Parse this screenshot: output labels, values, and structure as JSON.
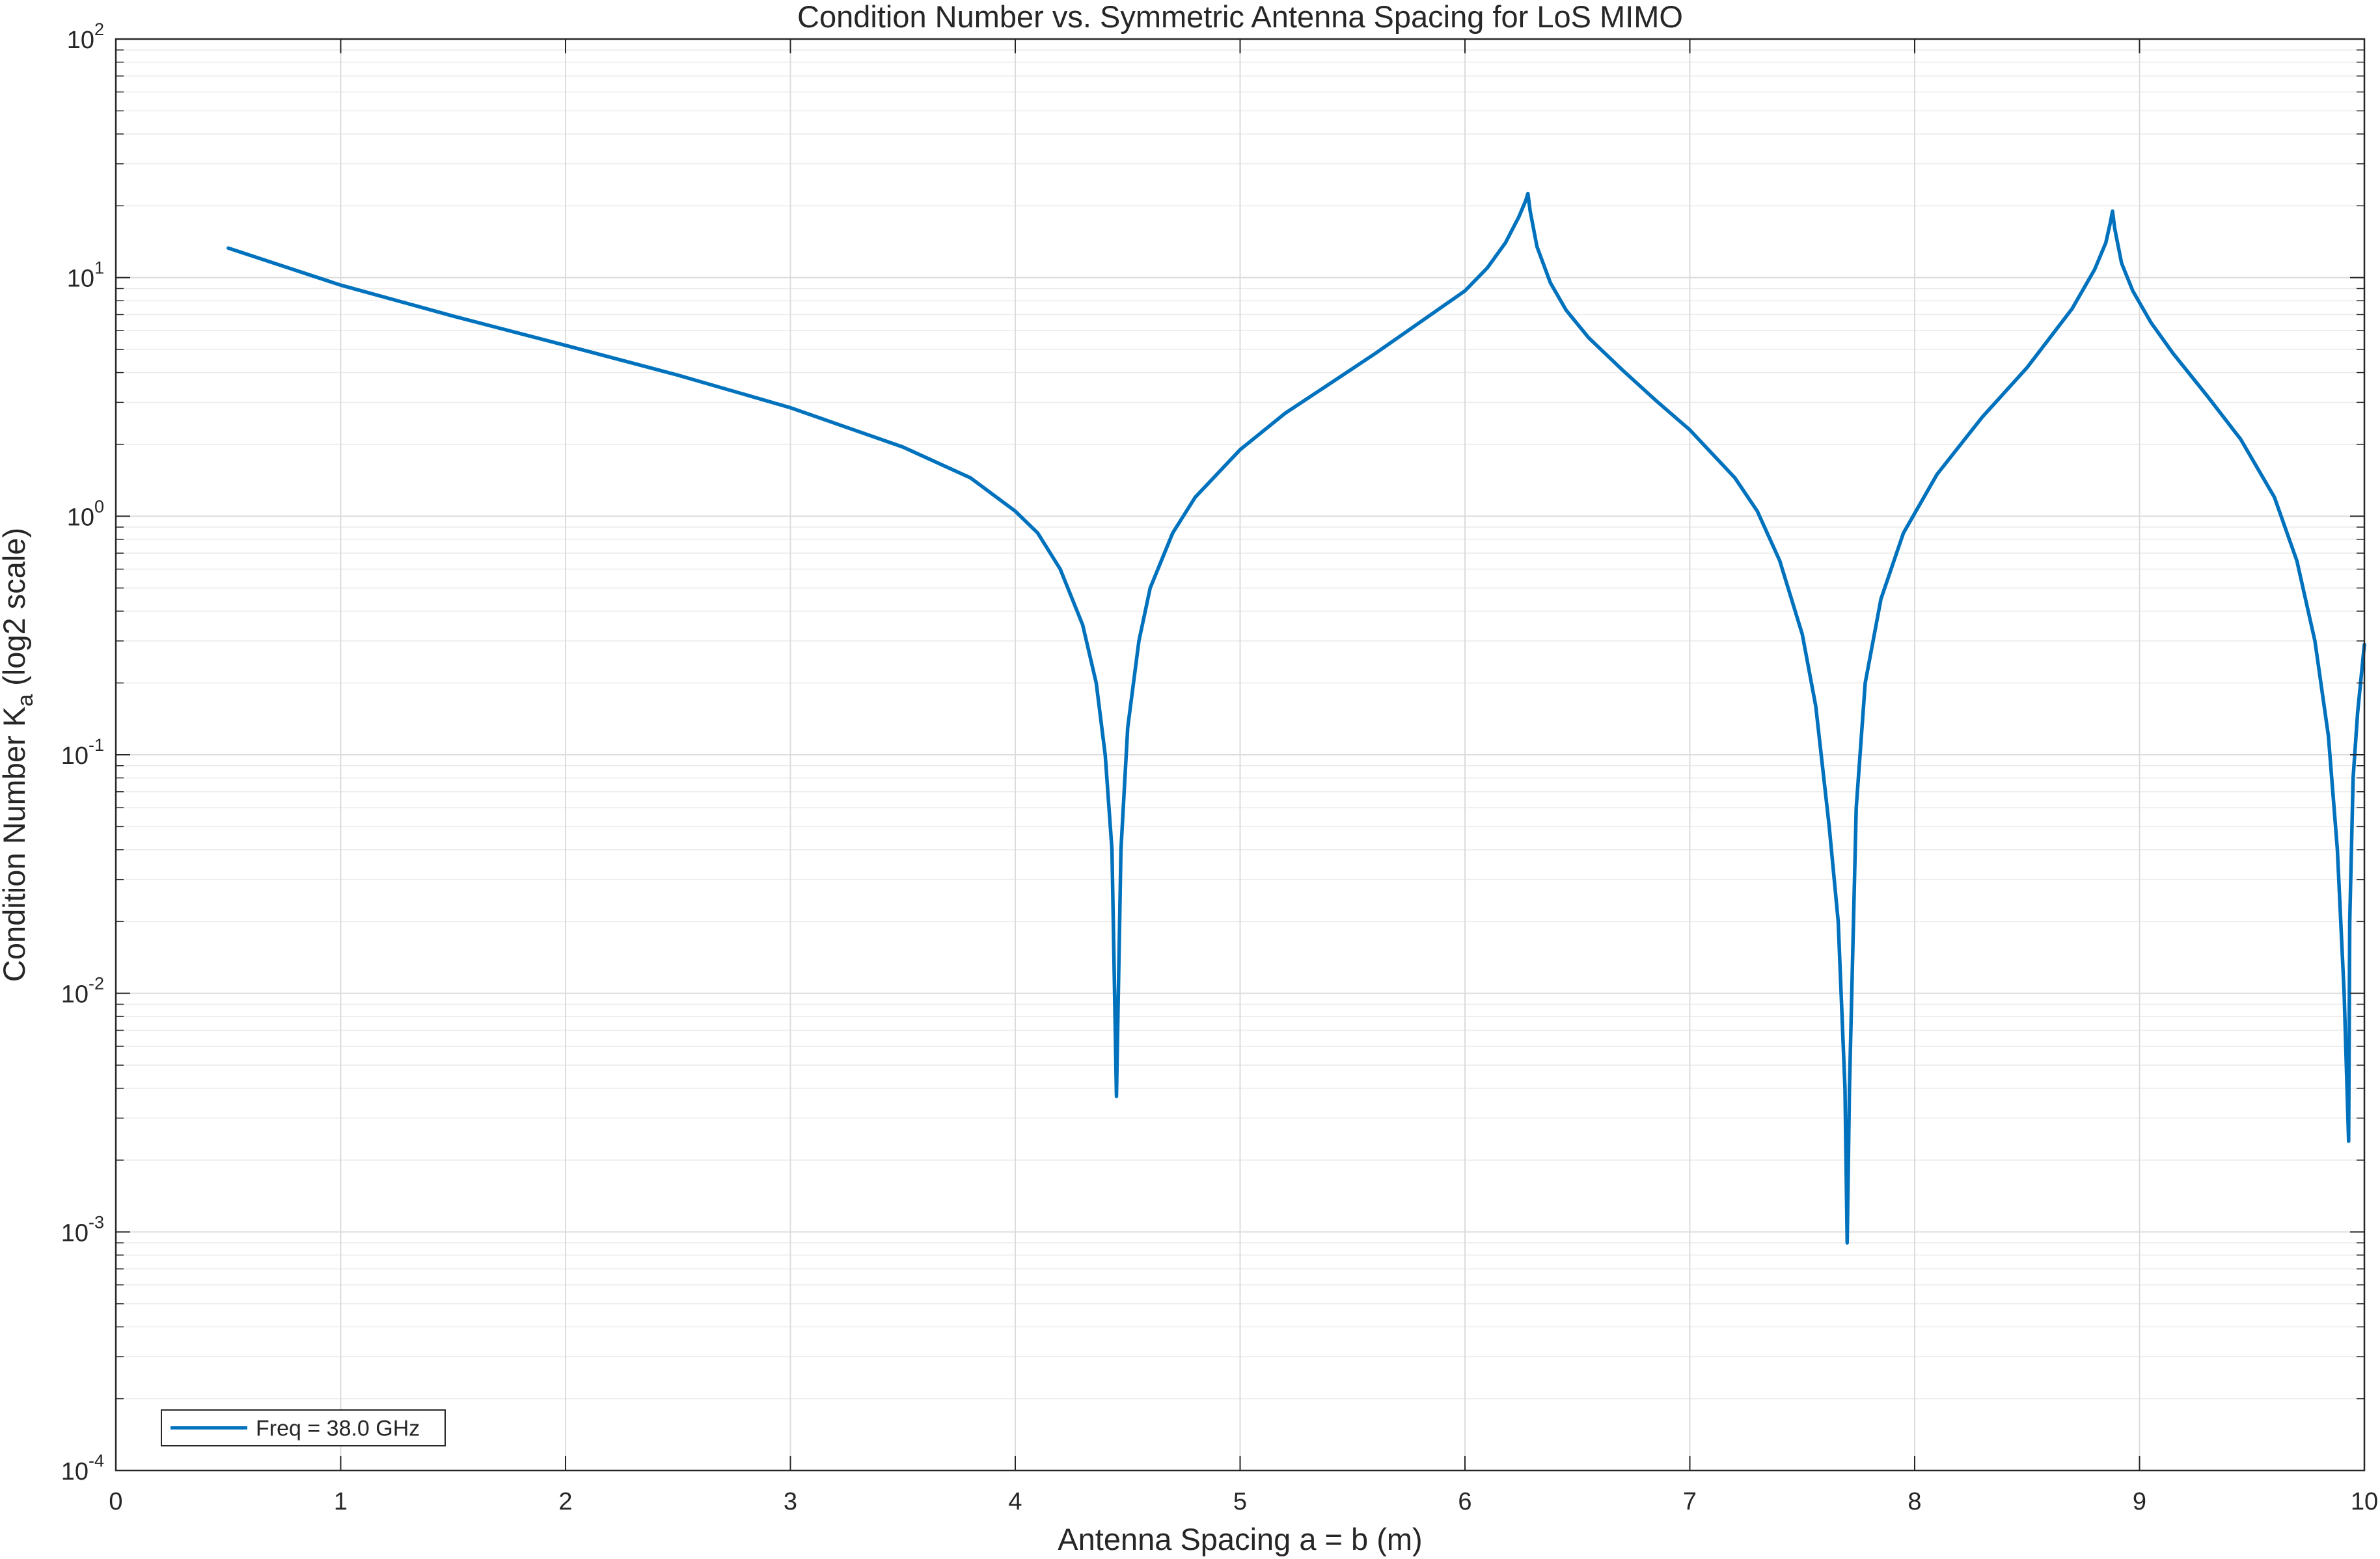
{
  "chart_data": {
    "type": "line",
    "title": "Condition Number vs. Symmetric Antenna Spacing for LoS MIMO",
    "xlabel": "Antenna Spacing a = b (m)",
    "ylabel": {
      "main": "Condition Number K",
      "subscript": "a",
      "suffix": " (log2 scale)"
    },
    "xlim": [
      0,
      10
    ],
    "ylim": [
      0.0001,
      100
    ],
    "yscale": "log",
    "grid": true,
    "minor_grid": true,
    "legend_position": "bottom-left",
    "x_ticks": [
      "0",
      "1",
      "2",
      "3",
      "4",
      "5",
      "6",
      "7",
      "8",
      "9",
      "10"
    ],
    "y_ticks": [
      {
        "base": "10",
        "exp": "-4",
        "value": 0.0001
      },
      {
        "base": "10",
        "exp": "-3",
        "value": 0.001
      },
      {
        "base": "10",
        "exp": "-2",
        "value": 0.01
      },
      {
        "base": "10",
        "exp": "-1",
        "value": 0.1
      },
      {
        "base": "10",
        "exp": "0",
        "value": 1
      },
      {
        "base": "10",
        "exp": "1",
        "value": 10
      },
      {
        "base": "10",
        "exp": "2",
        "value": 100
      }
    ],
    "series": [
      {
        "name": "Freq = 38.0 GHz",
        "color": "#0072BD",
        "x": [
          0.5,
          1.0,
          1.5,
          2.0,
          2.5,
          3.0,
          3.5,
          3.8,
          4.0,
          4.1,
          4.2,
          4.3,
          4.36,
          4.4,
          4.43,
          4.45,
          4.47,
          4.5,
          4.55,
          4.6,
          4.7,
          4.8,
          5.0,
          5.2,
          5.4,
          5.6,
          5.8,
          6.0,
          6.1,
          6.18,
          6.24,
          6.27,
          6.28,
          6.29,
          6.32,
          6.38,
          6.45,
          6.55,
          6.7,
          6.85,
          7.0,
          7.2,
          7.3,
          7.4,
          7.5,
          7.56,
          7.62,
          7.66,
          7.69,
          7.7,
          7.71,
          7.74,
          7.78,
          7.85,
          7.95,
          8.1,
          8.3,
          8.5,
          8.7,
          8.8,
          8.85,
          8.87,
          8.88,
          8.89,
          8.92,
          8.97,
          9.05,
          9.15,
          9.3,
          9.45,
          9.6,
          9.7,
          9.78,
          9.84,
          9.88,
          9.91,
          9.93,
          9.935,
          9.95,
          9.97,
          10.0
        ],
        "y": [
          13.3,
          9.3,
          6.9,
          5.2,
          3.9,
          2.85,
          1.95,
          1.45,
          1.05,
          0.85,
          0.6,
          0.35,
          0.2,
          0.1,
          0.04,
          0.0037,
          0.04,
          0.13,
          0.3,
          0.5,
          0.85,
          1.2,
          1.9,
          2.7,
          3.6,
          4.8,
          6.5,
          8.8,
          11.0,
          14.0,
          18.0,
          21.0,
          22.5,
          19.0,
          13.5,
          9.5,
          7.3,
          5.6,
          4.1,
          3.05,
          2.3,
          1.45,
          1.05,
          0.65,
          0.32,
          0.16,
          0.05,
          0.02,
          0.004,
          0.0009,
          0.004,
          0.06,
          0.2,
          0.45,
          0.85,
          1.5,
          2.6,
          4.2,
          7.4,
          10.8,
          14.0,
          17.0,
          19.0,
          16.0,
          11.5,
          8.8,
          6.5,
          4.8,
          3.2,
          2.1,
          1.2,
          0.65,
          0.3,
          0.12,
          0.04,
          0.01,
          0.0024,
          0.02,
          0.08,
          0.15,
          0.29
        ]
      }
    ]
  }
}
